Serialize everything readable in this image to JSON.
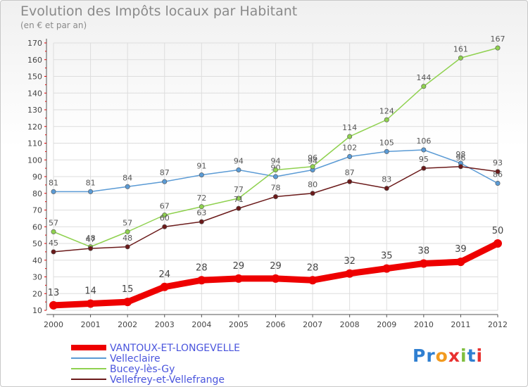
{
  "header": {
    "title": "Evolution des Impôts locaux par Habitant",
    "subtitle": "(en € et par an)"
  },
  "logo": {
    "text": "Proxiti",
    "letters": [
      "P",
      "r",
      "o",
      "x",
      "i",
      "t",
      "i"
    ],
    "colors": [
      "#2f7fd1",
      "#2f7fd1",
      "#f29a1e",
      "#e8302f",
      "#7fbf3f",
      "#2f7fd1",
      "#e8302f"
    ]
  },
  "colors": {
    "grid": "#dddddd",
    "axis": "#555555",
    "tick_red": "#e00000"
  },
  "chart_data": {
    "type": "line",
    "title": "Evolution des Impôts locaux par Habitant",
    "subtitle": "(en € et par an)",
    "x": [
      "2000",
      "2001",
      "2002",
      "2003",
      "2004",
      "2005",
      "2006",
      "2007",
      "2008",
      "2009",
      "2010",
      "2011",
      "2012"
    ],
    "ylim": [
      10,
      170
    ],
    "yticks": [
      10,
      20,
      30,
      40,
      50,
      60,
      70,
      80,
      90,
      100,
      110,
      120,
      130,
      140,
      150,
      160,
      170
    ],
    "grid": true,
    "legend_position": "bottom-left",
    "series": [
      {
        "name": "Velleclaire",
        "color": "#5b9bd5",
        "values": [
          81,
          81,
          84,
          87,
          91,
          94,
          90,
          94,
          102,
          105,
          106,
          98,
          86
        ],
        "labels": [
          "81",
          "81",
          "84",
          "87",
          "91",
          "94",
          "90",
          "94",
          "102",
          "105",
          "106",
          "98",
          "86"
        ]
      },
      {
        "name": "Bucey-lès-Gy",
        "color": "#8fd14f",
        "values": [
          57,
          48,
          57,
          67,
          72,
          77,
          94,
          96,
          114,
          124,
          144,
          161,
          167
        ],
        "labels": [
          "57",
          "48",
          "57",
          "67",
          "72",
          "77",
          "94",
          "96",
          "114",
          "124",
          "144",
          "161",
          "167"
        ]
      },
      {
        "name": "Vellefrey-et-Vellefrange",
        "color": "#6b1a1a",
        "values": [
          45,
          47,
          48,
          60,
          63,
          71,
          78,
          80,
          87,
          83,
          95,
          96,
          93
        ],
        "labels": [
          "45",
          "47",
          "48",
          "60",
          "63",
          "71",
          "78",
          "80",
          "87",
          "83",
          "95",
          "96",
          "93"
        ]
      },
      {
        "name": "VANTOUX-ET-LONGEVELLE",
        "color": "#ee0000",
        "values": [
          13,
          14,
          15,
          24,
          28,
          29,
          29,
          28,
          32,
          35,
          38,
          39,
          50
        ],
        "labels": [
          "13",
          "14",
          "15",
          "24",
          "28",
          "29",
          "29",
          "28",
          "32",
          "35",
          "38",
          "39",
          "50"
        ]
      }
    ],
    "legend": [
      "VANTOUX-ET-LONGEVELLE",
      "Velleclaire",
      "Bucey-lès-Gy",
      "Vellefrey-et-Vellefrange"
    ]
  }
}
